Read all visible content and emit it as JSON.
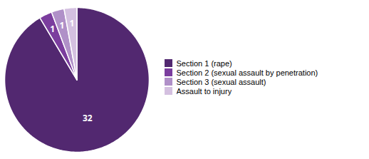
{
  "chart_data": {
    "type": "pie",
    "categories": [
      "Section 1 (rape)",
      "Section 2 (sexual assault by penetration)",
      "Section 3 (sexual assault)",
      "Assault to injury"
    ],
    "values": [
      32,
      1,
      1,
      1
    ],
    "colors": [
      "#522870",
      "#7b3d9e",
      "#b090c8",
      "#d4c0e0"
    ],
    "data_labels": true,
    "legend": "right"
  }
}
